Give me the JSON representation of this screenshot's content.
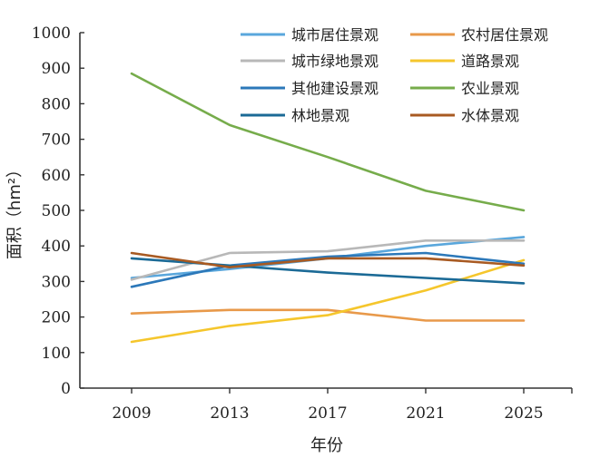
{
  "chart_data": {
    "type": "line",
    "xlabel": "年份",
    "ylabel": "面积（hm²）",
    "x": [
      "2009",
      "2013",
      "2017",
      "2021",
      "2025"
    ],
    "ylim": [
      0,
      1000
    ],
    "yticks": [
      "0",
      "100",
      "200",
      "300",
      "400",
      "500",
      "600",
      "700",
      "800",
      "900",
      "1000"
    ],
    "grid": false,
    "legend_position": "top-right",
    "series": [
      {
        "name": "城市居住景观",
        "color": "#5aa7dc",
        "values": [
          310,
          335,
          365,
          400,
          425
        ]
      },
      {
        "name": "农村居住景观",
        "color": "#e8994a",
        "values": [
          210,
          220,
          220,
          190,
          190
        ]
      },
      {
        "name": "城市绿地景观",
        "color": "#b8b8b8",
        "values": [
          305,
          380,
          385,
          415,
          415
        ]
      },
      {
        "name": "道路景观",
        "color": "#f5c62c",
        "values": [
          130,
          175,
          205,
          275,
          360
        ]
      },
      {
        "name": "其他建设景观",
        "color": "#2c78b9",
        "values": [
          285,
          345,
          370,
          380,
          350
        ]
      },
      {
        "name": "农业景观",
        "color": "#76ac4b",
        "values": [
          885,
          740,
          650,
          555,
          500
        ]
      },
      {
        "name": "林地景观",
        "color": "#1b6a96",
        "values": [
          365,
          345,
          325,
          310,
          295
        ]
      },
      {
        "name": "水体景观",
        "color": "#a85a22",
        "values": [
          380,
          340,
          365,
          365,
          345
        ]
      }
    ]
  }
}
